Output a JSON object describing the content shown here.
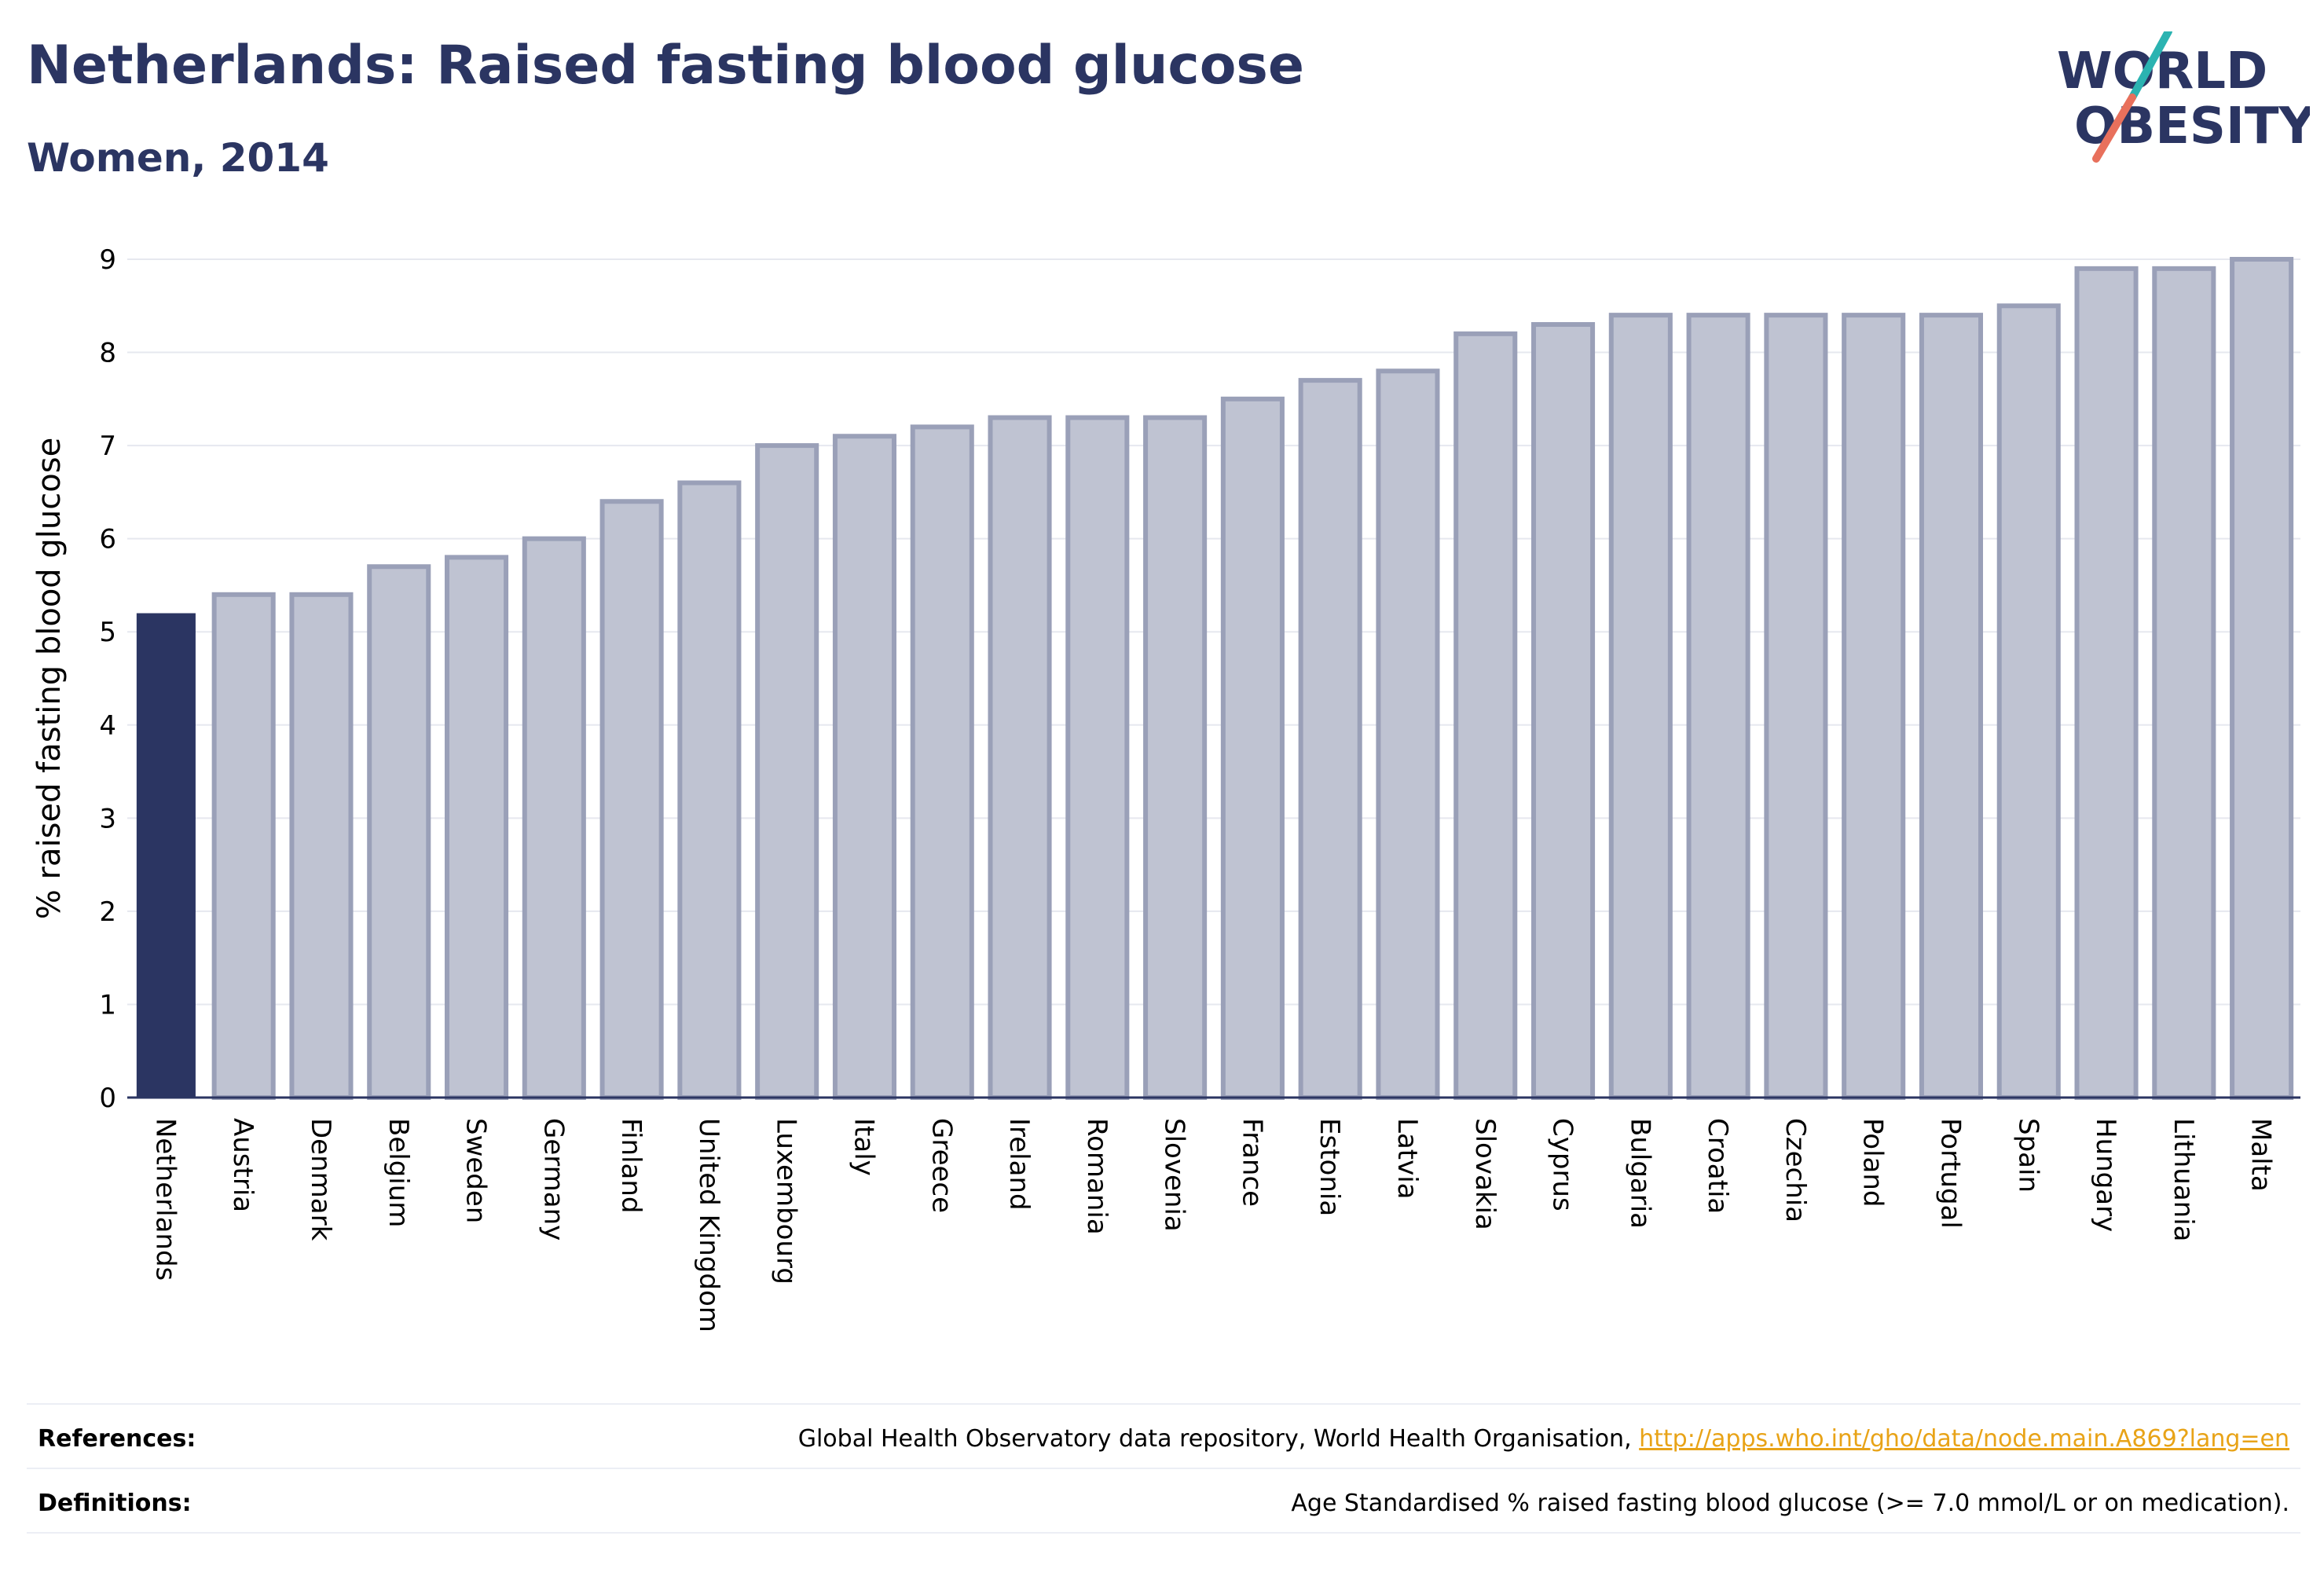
{
  "header": {
    "title": "Netherlands: Raised fasting blood glucose",
    "subtitle": "Women, 2014"
  },
  "logo": {
    "line1": "WORLD",
    "line2": "OBESITY"
  },
  "chart_data": {
    "type": "bar",
    "ylabel": "% raised fasting blood glucose",
    "ylim": [
      0,
      9
    ],
    "yticks": [
      "0",
      "1",
      "2",
      "3",
      "4",
      "5",
      "6",
      "7",
      "8",
      "9"
    ],
    "grid": true,
    "highlight": "Netherlands",
    "categories": [
      "Netherlands",
      "Austria",
      "Denmark",
      "Belgium",
      "Sweden",
      "Germany",
      "Finland",
      "United Kingdom",
      "Luxembourg",
      "Italy",
      "Greece",
      "Ireland",
      "Romania",
      "Slovenia",
      "France",
      "Estonia",
      "Latvia",
      "Slovakia",
      "Cyprus",
      "Bulgaria",
      "Croatia",
      "Czechia",
      "Poland",
      "Portugal",
      "Spain",
      "Hungary",
      "Lithuania",
      "Malta"
    ],
    "values": [
      5.2,
      5.4,
      5.4,
      5.7,
      5.8,
      6.0,
      6.4,
      6.6,
      7.0,
      7.1,
      7.2,
      7.3,
      7.3,
      7.3,
      7.5,
      7.7,
      7.8,
      8.2,
      8.3,
      8.4,
      8.4,
      8.4,
      8.4,
      8.4,
      8.5,
      8.9,
      8.9,
      9.0
    ],
    "colors": {
      "highlight": "#2b3562",
      "bar_fill": "#bfc3d2",
      "bar_stroke": "#9aa0b8",
      "grid": "#e6e8ef",
      "axis": "#2b3562"
    }
  },
  "footer": {
    "references_label": "References:",
    "references_text": "Global Health Observatory data repository, World Health Organisation, ",
    "references_link": "http://apps.who.int/gho/data/node.main.A869?lang=en",
    "definitions_label": "Definitions:",
    "definitions_text": "Age Standardised % raised fasting blood glucose (>= 7.0 mmol/L or on medication)."
  }
}
